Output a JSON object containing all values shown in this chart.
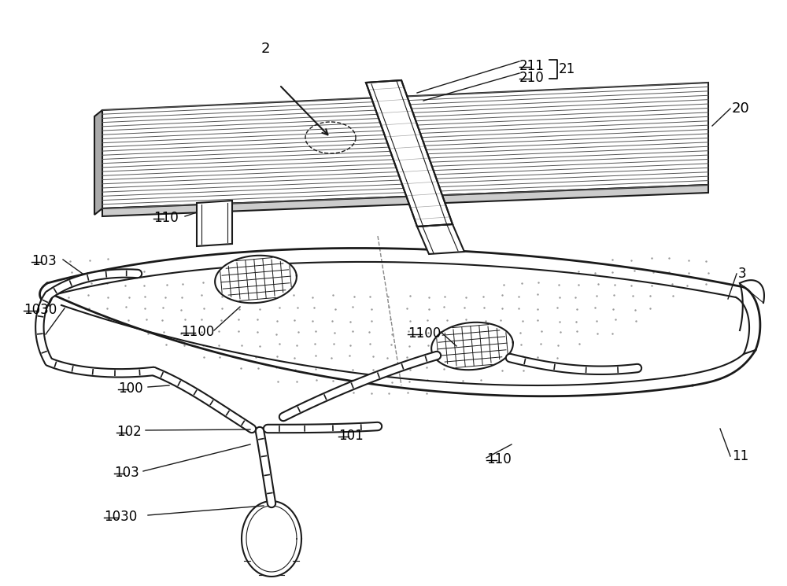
{
  "bg_color": "#ffffff",
  "lc": "#1a1a1a",
  "gray": "#888888",
  "lightgray": "#cccccc",
  "darkgray": "#555555"
}
